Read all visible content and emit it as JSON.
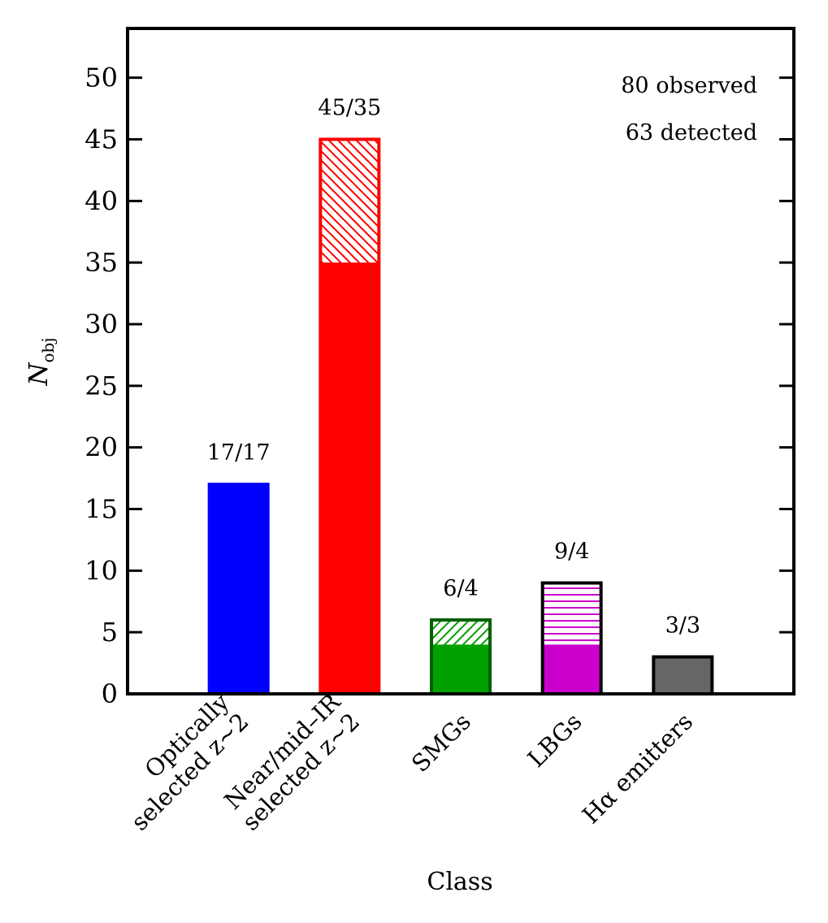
{
  "chart_data": {
    "type": "overlay_bar",
    "ylabel": "N",
    "ylabel_sub": "obj",
    "xlabel": "Class",
    "categories": [
      [
        "Optically",
        "selected z~2"
      ],
      [
        "Near/mid–IR",
        "selected z~2"
      ],
      [
        "SMGs"
      ],
      [
        "LBGs"
      ],
      [
        "Hα emitters"
      ]
    ],
    "series": [
      {
        "values": [
          17,
          45,
          6,
          9,
          3
        ]
      },
      {
        "values": [
          17,
          35,
          4,
          4,
          3
        ]
      }
    ],
    "bar_labels": [
      "17/17",
      "45/35",
      "6/4",
      "9/4",
      "3/3"
    ],
    "colors": [
      "#0000ff",
      "#ff0000",
      "#00a000",
      "#cc00cc",
      "#666666"
    ],
    "edgecolors": [
      "#0000ff",
      "#ff0000",
      "#006000",
      "#000000",
      "#000000"
    ],
    "hatch": [
      "none",
      "diag",
      "diag",
      "horiz",
      "none"
    ],
    "annotations": [
      "80 observed",
      "63 detected"
    ],
    "ylim": [
      0,
      54
    ],
    "yticks": [
      0,
      5,
      10,
      15,
      20,
      25,
      30,
      35,
      40,
      45,
      50
    ]
  }
}
